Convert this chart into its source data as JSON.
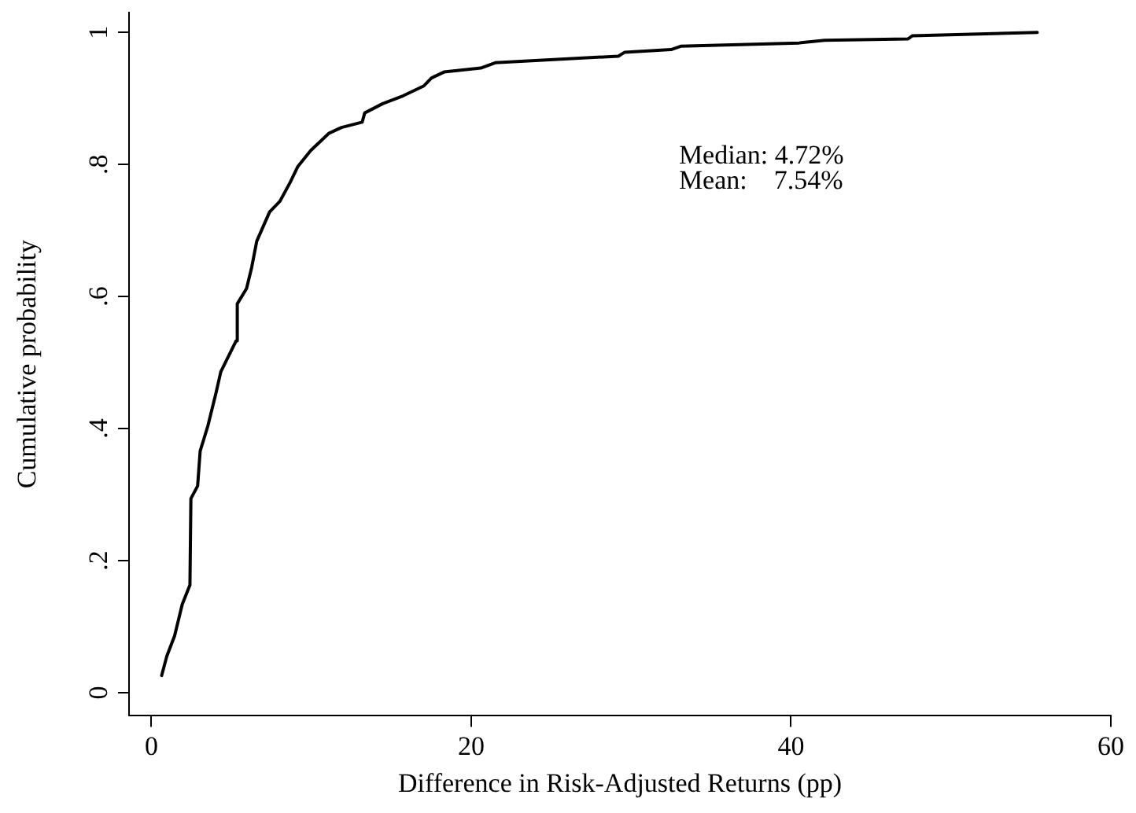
{
  "chart_data": {
    "type": "line",
    "xlabel": "Difference in Risk-Adjusted Returns (pp)",
    "ylabel": "Cumulative probability",
    "annotations": [
      "Median: 4.72%",
      "Mean:    7.54%"
    ],
    "xlim": [
      -1.4,
      60
    ],
    "xticks": [
      0,
      20,
      40,
      60
    ],
    "ylim": [
      -0.035,
      1.03
    ],
    "yticks": [
      0,
      {
        "value": 0.2,
        "label": ".2"
      },
      {
        "value": 0.4,
        "label": ".4"
      },
      {
        "value": 0.6,
        "label": ".6"
      },
      {
        "value": 0.8,
        "label": ".8"
      },
      1
    ],
    "grid": false,
    "legend": false,
    "marker": "none",
    "line_style": "solid",
    "series": [
      {
        "color": "#000000",
        "x": [
          0.64,
          0.96,
          1.45,
          1.93,
          2.41,
          2.47,
          2.89,
          3.05,
          3.53,
          4.02,
          4.34,
          5.3,
          5.37,
          5.95,
          6.27,
          6.59,
          7.39,
          8.03,
          8.68,
          9.16,
          9.96,
          11.09,
          11.89,
          13.18,
          13.34,
          14.46,
          15.75,
          17.04,
          17.52,
          18.3,
          20.6,
          21.5,
          29.2,
          29.6,
          32.5,
          33.1,
          40.5,
          42.1,
          47.3,
          47.6,
          55.4
        ],
        "values": [
          0.026,
          0.055,
          0.086,
          0.134,
          0.163,
          0.294,
          0.313,
          0.366,
          0.404,
          0.452,
          0.486,
          0.533,
          0.589,
          0.612,
          0.644,
          0.684,
          0.728,
          0.744,
          0.773,
          0.797,
          0.821,
          0.847,
          0.856,
          0.864,
          0.878,
          0.892,
          0.904,
          0.919,
          0.931,
          0.94,
          0.946,
          0.954,
          0.964,
          0.97,
          0.974,
          0.979,
          0.984,
          0.988,
          0.99,
          0.995,
          1.0
        ]
      }
    ]
  }
}
